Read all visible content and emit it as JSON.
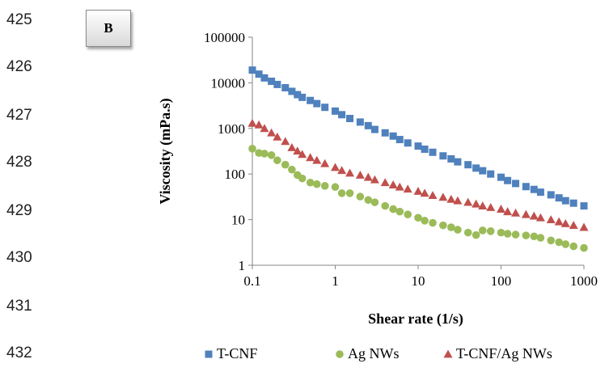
{
  "line_numbers": [
    "425",
    "426",
    "427",
    "428",
    "429",
    "430",
    "431",
    "432"
  ],
  "panel_label": "B",
  "chart_data": {
    "type": "scatter",
    "xlabel": "Shear rate (1/s)",
    "ylabel": "Viscosity (mPa.s)",
    "x_scale": "log",
    "y_scale": "log",
    "xlim": [
      0.1,
      1000
    ],
    "ylim": [
      1,
      100000
    ],
    "x_ticks": [
      "0.1",
      "1",
      "10",
      "100",
      "1000"
    ],
    "y_ticks": [
      "1",
      "10",
      "100",
      "1000",
      "10000",
      "100000"
    ],
    "grid": false,
    "legend_position": "bottom",
    "series": [
      {
        "name": "T-CNF",
        "marker": "square",
        "color": "#4f81bd",
        "points": [
          [
            0.1,
            19000
          ],
          [
            0.12,
            15500
          ],
          [
            0.14,
            12800
          ],
          [
            0.17,
            10800
          ],
          [
            0.2,
            9200
          ],
          [
            0.25,
            7800
          ],
          [
            0.3,
            6500
          ],
          [
            0.35,
            5500
          ],
          [
            0.4,
            4800
          ],
          [
            0.5,
            4100
          ],
          [
            0.6,
            3500
          ],
          [
            0.75,
            2900
          ],
          [
            1,
            2400
          ],
          [
            1.2,
            2000
          ],
          [
            1.5,
            1650
          ],
          [
            2,
            1380
          ],
          [
            2.5,
            1150
          ],
          [
            3,
            950
          ],
          [
            4,
            800
          ],
          [
            5,
            680
          ],
          [
            6,
            570
          ],
          [
            7.5,
            480
          ],
          [
            10,
            410
          ],
          [
            12,
            350
          ],
          [
            15,
            300
          ],
          [
            20,
            250
          ],
          [
            25,
            215
          ],
          [
            30,
            185
          ],
          [
            40,
            160
          ],
          [
            50,
            135
          ],
          [
            60,
            118
          ],
          [
            75,
            100
          ],
          [
            100,
            85
          ],
          [
            120,
            72
          ],
          [
            150,
            62
          ],
          [
            200,
            53
          ],
          [
            250,
            46
          ],
          [
            300,
            40
          ],
          [
            400,
            35
          ],
          [
            500,
            30
          ],
          [
            600,
            26
          ],
          [
            750,
            23
          ],
          [
            1000,
            20
          ]
        ]
      },
      {
        "name": "Ag NWs",
        "marker": "circle",
        "color": "#9bbb59",
        "points": [
          [
            0.1,
            360
          ],
          [
            0.12,
            290
          ],
          [
            0.14,
            280
          ],
          [
            0.17,
            260
          ],
          [
            0.2,
            200
          ],
          [
            0.25,
            160
          ],
          [
            0.3,
            125
          ],
          [
            0.35,
            95
          ],
          [
            0.4,
            80
          ],
          [
            0.5,
            65
          ],
          [
            0.6,
            60
          ],
          [
            0.75,
            55
          ],
          [
            1,
            52
          ],
          [
            1.2,
            38
          ],
          [
            1.5,
            38
          ],
          [
            2,
            32
          ],
          [
            2.5,
            27
          ],
          [
            3,
            24
          ],
          [
            4,
            20
          ],
          [
            5,
            17
          ],
          [
            6,
            15
          ],
          [
            7.5,
            13
          ],
          [
            10,
            11
          ],
          [
            12,
            9.5
          ],
          [
            15,
            8.5
          ],
          [
            20,
            7.5
          ],
          [
            25,
            6.8
          ],
          [
            30,
            6
          ],
          [
            40,
            5.2
          ],
          [
            50,
            4.6
          ],
          [
            60,
            5.8
          ],
          [
            75,
            5.6
          ],
          [
            100,
            5.2
          ],
          [
            120,
            4.9
          ],
          [
            150,
            4.7
          ],
          [
            200,
            4.5
          ],
          [
            250,
            4.3
          ],
          [
            300,
            4
          ],
          [
            400,
            3.5
          ],
          [
            500,
            3.2
          ],
          [
            600,
            2.9
          ],
          [
            750,
            2.6
          ],
          [
            1000,
            2.4
          ]
        ]
      },
      {
        "name": "T-CNF/Ag NWs",
        "marker": "triangle",
        "color": "#c0504d",
        "points": [
          [
            0.1,
            1300
          ],
          [
            0.12,
            1200
          ],
          [
            0.14,
            1000
          ],
          [
            0.17,
            800
          ],
          [
            0.2,
            650
          ],
          [
            0.25,
            520
          ],
          [
            0.3,
            380
          ],
          [
            0.35,
            320
          ],
          [
            0.4,
            270
          ],
          [
            0.5,
            230
          ],
          [
            0.6,
            200
          ],
          [
            0.75,
            170
          ],
          [
            1,
            140
          ],
          [
            1.2,
            120
          ],
          [
            1.5,
            105
          ],
          [
            2,
            95
          ],
          [
            2.5,
            85
          ],
          [
            3,
            75
          ],
          [
            4,
            65
          ],
          [
            5,
            58
          ],
          [
            6,
            52
          ],
          [
            7.5,
            47
          ],
          [
            10,
            42
          ],
          [
            12,
            38
          ],
          [
            15,
            34
          ],
          [
            20,
            31
          ],
          [
            25,
            28
          ],
          [
            30,
            26
          ],
          [
            40,
            24
          ],
          [
            50,
            22
          ],
          [
            60,
            20
          ],
          [
            75,
            18.5
          ],
          [
            100,
            17
          ],
          [
            120,
            15
          ],
          [
            150,
            14
          ],
          [
            200,
            13
          ],
          [
            250,
            12
          ],
          [
            300,
            11
          ],
          [
            400,
            10
          ],
          [
            500,
            9
          ],
          [
            600,
            8.2
          ],
          [
            750,
            7.5
          ],
          [
            1000,
            6.8
          ]
        ]
      }
    ]
  }
}
